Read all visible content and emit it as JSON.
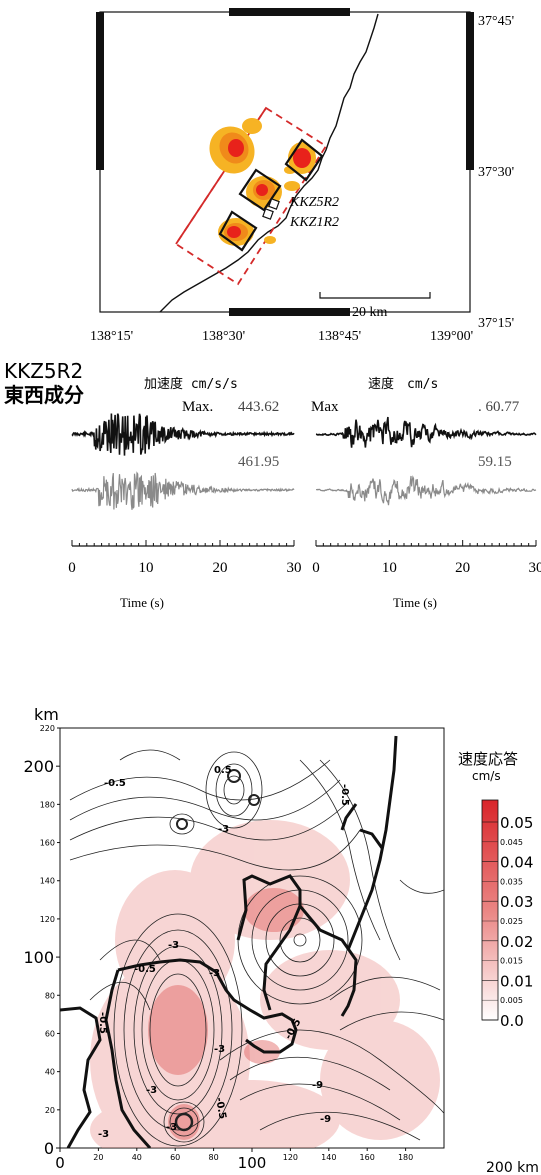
{
  "map": {
    "lat_labels": [
      "37°45'",
      "37°30'",
      "37°15'"
    ],
    "lon_labels": [
      "138°15'",
      "138°30'",
      "138°45'",
      "139°00'"
    ],
    "scale_label": "20 km",
    "station_labels": [
      "KKZ5R2",
      "KKZ1R2"
    ]
  },
  "waveform": {
    "station": "KKZ5R2",
    "component": "東西成分",
    "acc_header": "加速度 cm/s/s",
    "vel_header": "速度　cm/s",
    "acc_max_prefix": "Max.",
    "acc_max_obs": "443.62",
    "vel_max_prefix": "Max",
    "vel_max_obs": ". 60.77",
    "acc_max_syn": "461.95",
    "vel_max_syn": "59.15",
    "time_label": "Time (s)",
    "time_ticks": [
      "0",
      "10",
      "20",
      "30"
    ]
  },
  "response_map": {
    "y_unit": "km",
    "x_unit": "200 km",
    "y_ticks_major": [
      "200",
      "100",
      "0"
    ],
    "y_ticks_minor": [
      "220",
      "180",
      "160",
      "140",
      "120",
      "80",
      "60",
      "40",
      "20"
    ],
    "x_ticks_major": [
      "0",
      "100"
    ],
    "x_ticks_minor": [
      "20",
      "40",
      "60",
      "80",
      "120",
      "140",
      "160",
      "180"
    ],
    "contour_labels": [
      "-0.5",
      "0.5",
      "-0.5",
      "-0.5",
      "-3",
      "-0.5",
      "-3",
      "-3",
      "-0.5",
      "-3",
      "-3",
      "-0.5",
      "-3",
      "-3",
      "-9",
      "-9"
    ],
    "colorbar_title": "速度応答",
    "colorbar_unit": "cm/s",
    "colorbar_major": [
      "0.05",
      "0.04",
      "0.03",
      "0.02",
      "0.01",
      "0.0"
    ],
    "colorbar_minor": [
      "0.045",
      "0.035",
      "0.025",
      "0.015",
      "0.005"
    ]
  },
  "colors": {
    "slip_outer": "#f6b324",
    "slip_mid": "#f08a1a",
    "slip_core": "#e8221b",
    "fault_box": "#d42a2a",
    "trace_obs": "#111111",
    "trace_syn": "#8a8a8a",
    "cb_top": "#d9252a",
    "cb_bottom": "#ffffff"
  }
}
